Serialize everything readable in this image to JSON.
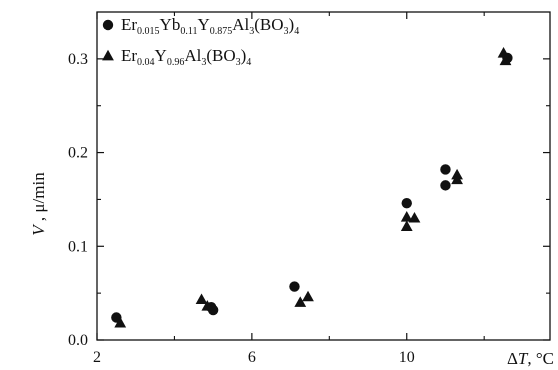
{
  "chart_data": {
    "type": "scatter",
    "title": "",
    "xlabel": "ΔT, °C",
    "xlabel_parts": {
      "symbol": "Δ",
      "var": "T",
      "unit": ", °C"
    },
    "ylabel": "V , μ/min",
    "ylabel_parts": {
      "var": "V",
      "unit": " , μ/min"
    },
    "xlim": [
      2,
      13.7
    ],
    "ylim": [
      0,
      0.35
    ],
    "xticks": [
      2,
      6,
      10
    ],
    "xticks_minor": [
      4,
      8,
      12
    ],
    "yticks": [
      0.0,
      0.1,
      0.2,
      0.3
    ],
    "ytick_labels": [
      "0.0",
      "0.1",
      "0.2",
      "0.3"
    ],
    "grid": false,
    "legend_position": "top-left",
    "series": [
      {
        "name": "Er0.015Yb0.11Y0.875Al3(BO3)4",
        "name_parts": [
          {
            "t": "Er",
            "sub": false
          },
          {
            "t": "0.015",
            "sub": true
          },
          {
            "t": "Yb",
            "sub": false
          },
          {
            "t": "0.11",
            "sub": true
          },
          {
            "t": "Y",
            "sub": false
          },
          {
            "t": "0.875",
            "sub": true
          },
          {
            "t": "Al",
            "sub": false
          },
          {
            "t": "3",
            "sub": true
          },
          {
            "t": "(BO",
            "sub": false
          },
          {
            "t": "3",
            "sub": true
          },
          {
            "t": ")",
            "sub": false
          },
          {
            "t": "4",
            "sub": true
          }
        ],
        "marker": "circle",
        "color": "#111111",
        "points": [
          {
            "x": 2.5,
            "y": 0.024
          },
          {
            "x": 4.95,
            "y": 0.035
          },
          {
            "x": 5.0,
            "y": 0.032
          },
          {
            "x": 7.1,
            "y": 0.057
          },
          {
            "x": 10.0,
            "y": 0.146
          },
          {
            "x": 11.0,
            "y": 0.182
          },
          {
            "x": 11.0,
            "y": 0.165
          },
          {
            "x": 12.6,
            "y": 0.301
          }
        ]
      },
      {
        "name": "Er0.04Y0.96Al3(BO3)4",
        "name_parts": [
          {
            "t": "Er",
            "sub": false
          },
          {
            "t": "0.04",
            "sub": true
          },
          {
            "t": "Y",
            "sub": false
          },
          {
            "t": "0.96",
            "sub": true
          },
          {
            "t": "Al",
            "sub": false
          },
          {
            "t": "3",
            "sub": true
          },
          {
            "t": "(BO",
            "sub": false
          },
          {
            "t": "3",
            "sub": true
          },
          {
            "t": ")",
            "sub": false
          },
          {
            "t": "4",
            "sub": true
          }
        ],
        "marker": "triangle",
        "color": "#111111",
        "points": [
          {
            "x": 2.6,
            "y": 0.018
          },
          {
            "x": 4.7,
            "y": 0.043
          },
          {
            "x": 4.85,
            "y": 0.036
          },
          {
            "x": 7.25,
            "y": 0.04
          },
          {
            "x": 7.45,
            "y": 0.046
          },
          {
            "x": 10.0,
            "y": 0.121
          },
          {
            "x": 10.0,
            "y": 0.131
          },
          {
            "x": 10.2,
            "y": 0.13
          },
          {
            "x": 11.3,
            "y": 0.176
          },
          {
            "x": 11.3,
            "y": 0.171
          },
          {
            "x": 12.5,
            "y": 0.306
          },
          {
            "x": 12.55,
            "y": 0.298
          }
        ]
      }
    ]
  }
}
